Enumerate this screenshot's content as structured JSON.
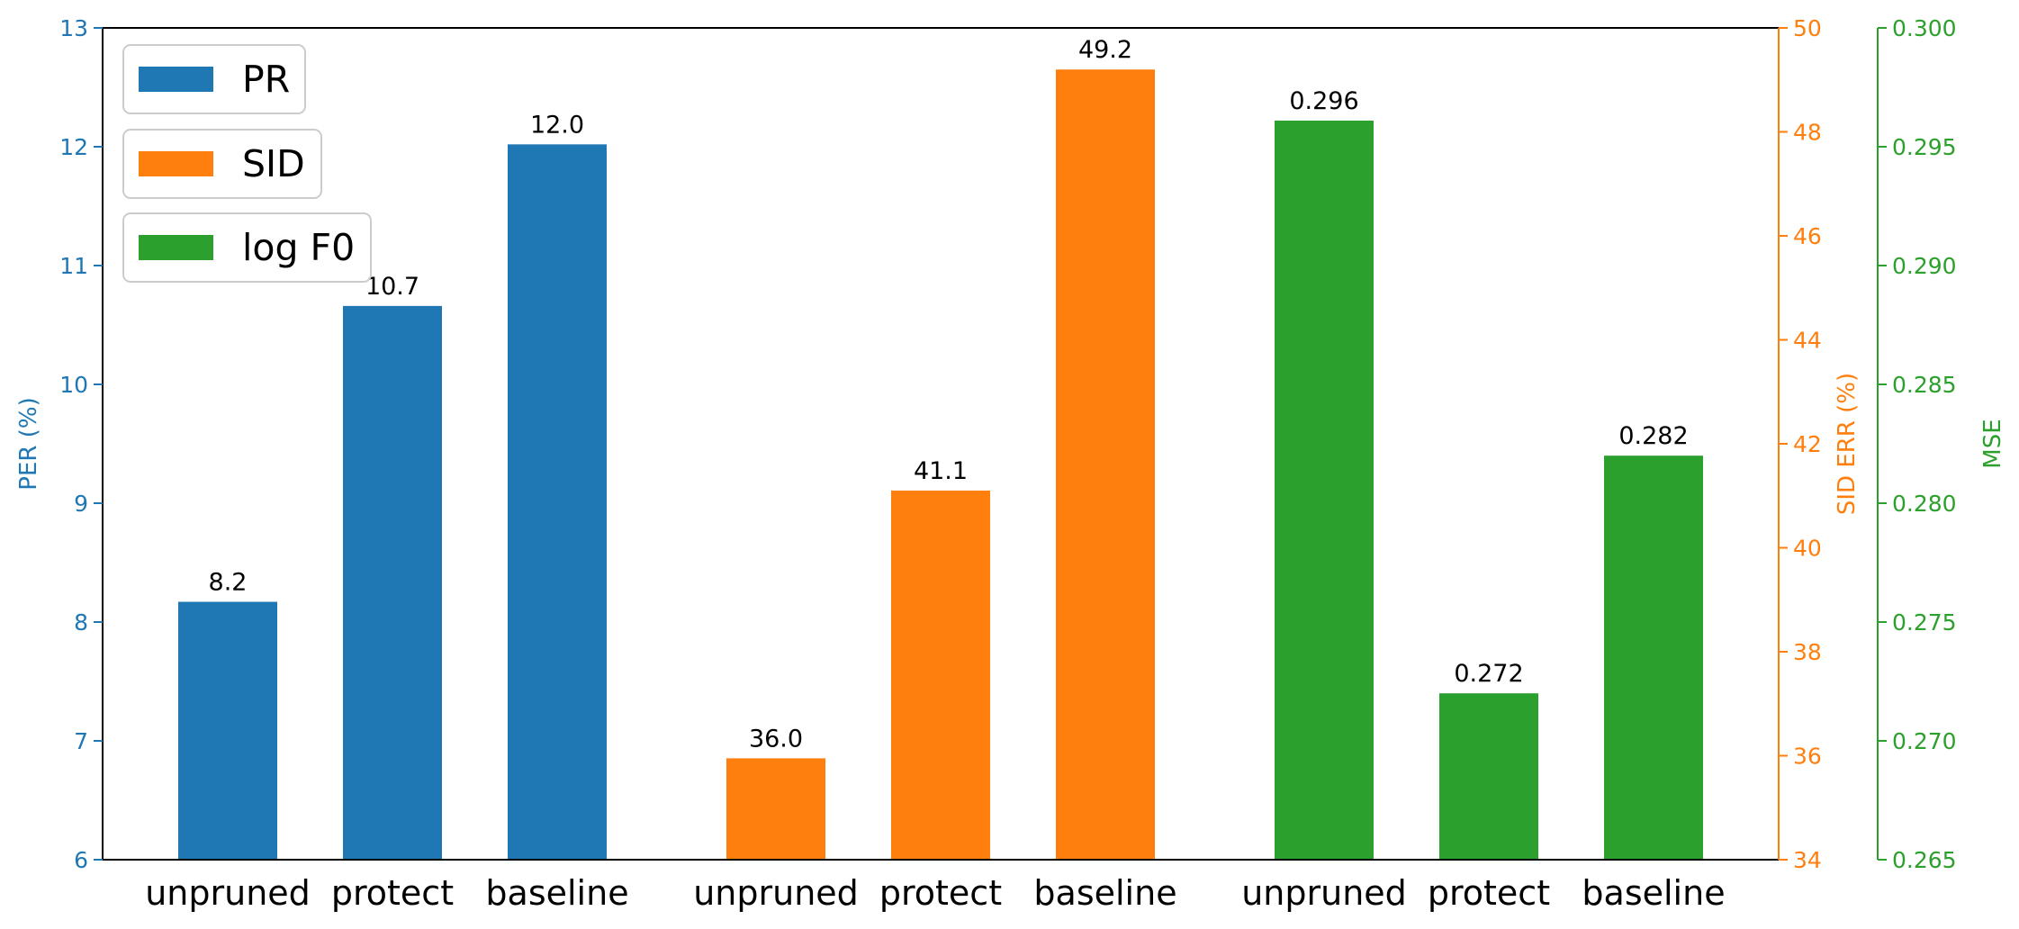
{
  "colors": {
    "pr": "#1f77b4",
    "sid": "#ff7f0e",
    "f0": "#2ca02c",
    "frame": "#000000",
    "legend_border": "#cccccc"
  },
  "chart_data": {
    "type": "bar",
    "grid": false,
    "legend_position": "top-left",
    "legend": [
      "PR",
      "SID",
      "log F0"
    ],
    "axes": {
      "left": {
        "label": "PER (%)",
        "ylim": [
          6,
          13
        ],
        "ticks": [
          "6",
          "7",
          "8",
          "9",
          "10",
          "11",
          "12",
          "13"
        ],
        "tick_values": [
          6,
          7,
          8,
          9,
          10,
          11,
          12,
          13
        ]
      },
      "right1": {
        "label": "SID ERR (%)",
        "ylim": [
          34,
          50
        ],
        "ticks": [
          "34",
          "36",
          "38",
          "40",
          "42",
          "44",
          "46",
          "48",
          "50"
        ],
        "tick_values": [
          34,
          36,
          38,
          40,
          42,
          44,
          46,
          48,
          50
        ]
      },
      "right2": {
        "label": "MSE",
        "ylim": [
          0.265,
          0.3
        ],
        "ticks": [
          "0.265",
          "0.270",
          "0.275",
          "0.280",
          "0.285",
          "0.290",
          "0.295",
          "0.300"
        ],
        "tick_values": [
          0.265,
          0.27,
          0.275,
          0.28,
          0.285,
          0.29,
          0.295,
          0.3
        ]
      }
    },
    "groups": [
      {
        "name": "PR",
        "axis": "left",
        "color_key": "pr",
        "categories": [
          "unpruned",
          "protect",
          "baseline"
        ],
        "values": [
          8.17,
          10.66,
          12.02
        ],
        "labels": [
          "8.2",
          "10.7",
          "12.0"
        ]
      },
      {
        "name": "SID",
        "axis": "right1",
        "color_key": "sid",
        "categories": [
          "unpruned",
          "protect",
          "baseline"
        ],
        "values": [
          35.95,
          41.1,
          49.2
        ],
        "labels": [
          "36.0",
          "41.1",
          "49.2"
        ]
      },
      {
        "name": "log F0",
        "axis": "right2",
        "color_key": "f0",
        "categories": [
          "unpruned",
          "protect",
          "baseline"
        ],
        "values": [
          0.2961,
          0.272,
          0.282
        ],
        "labels": [
          "0.296",
          "0.272",
          "0.282"
        ]
      }
    ]
  }
}
